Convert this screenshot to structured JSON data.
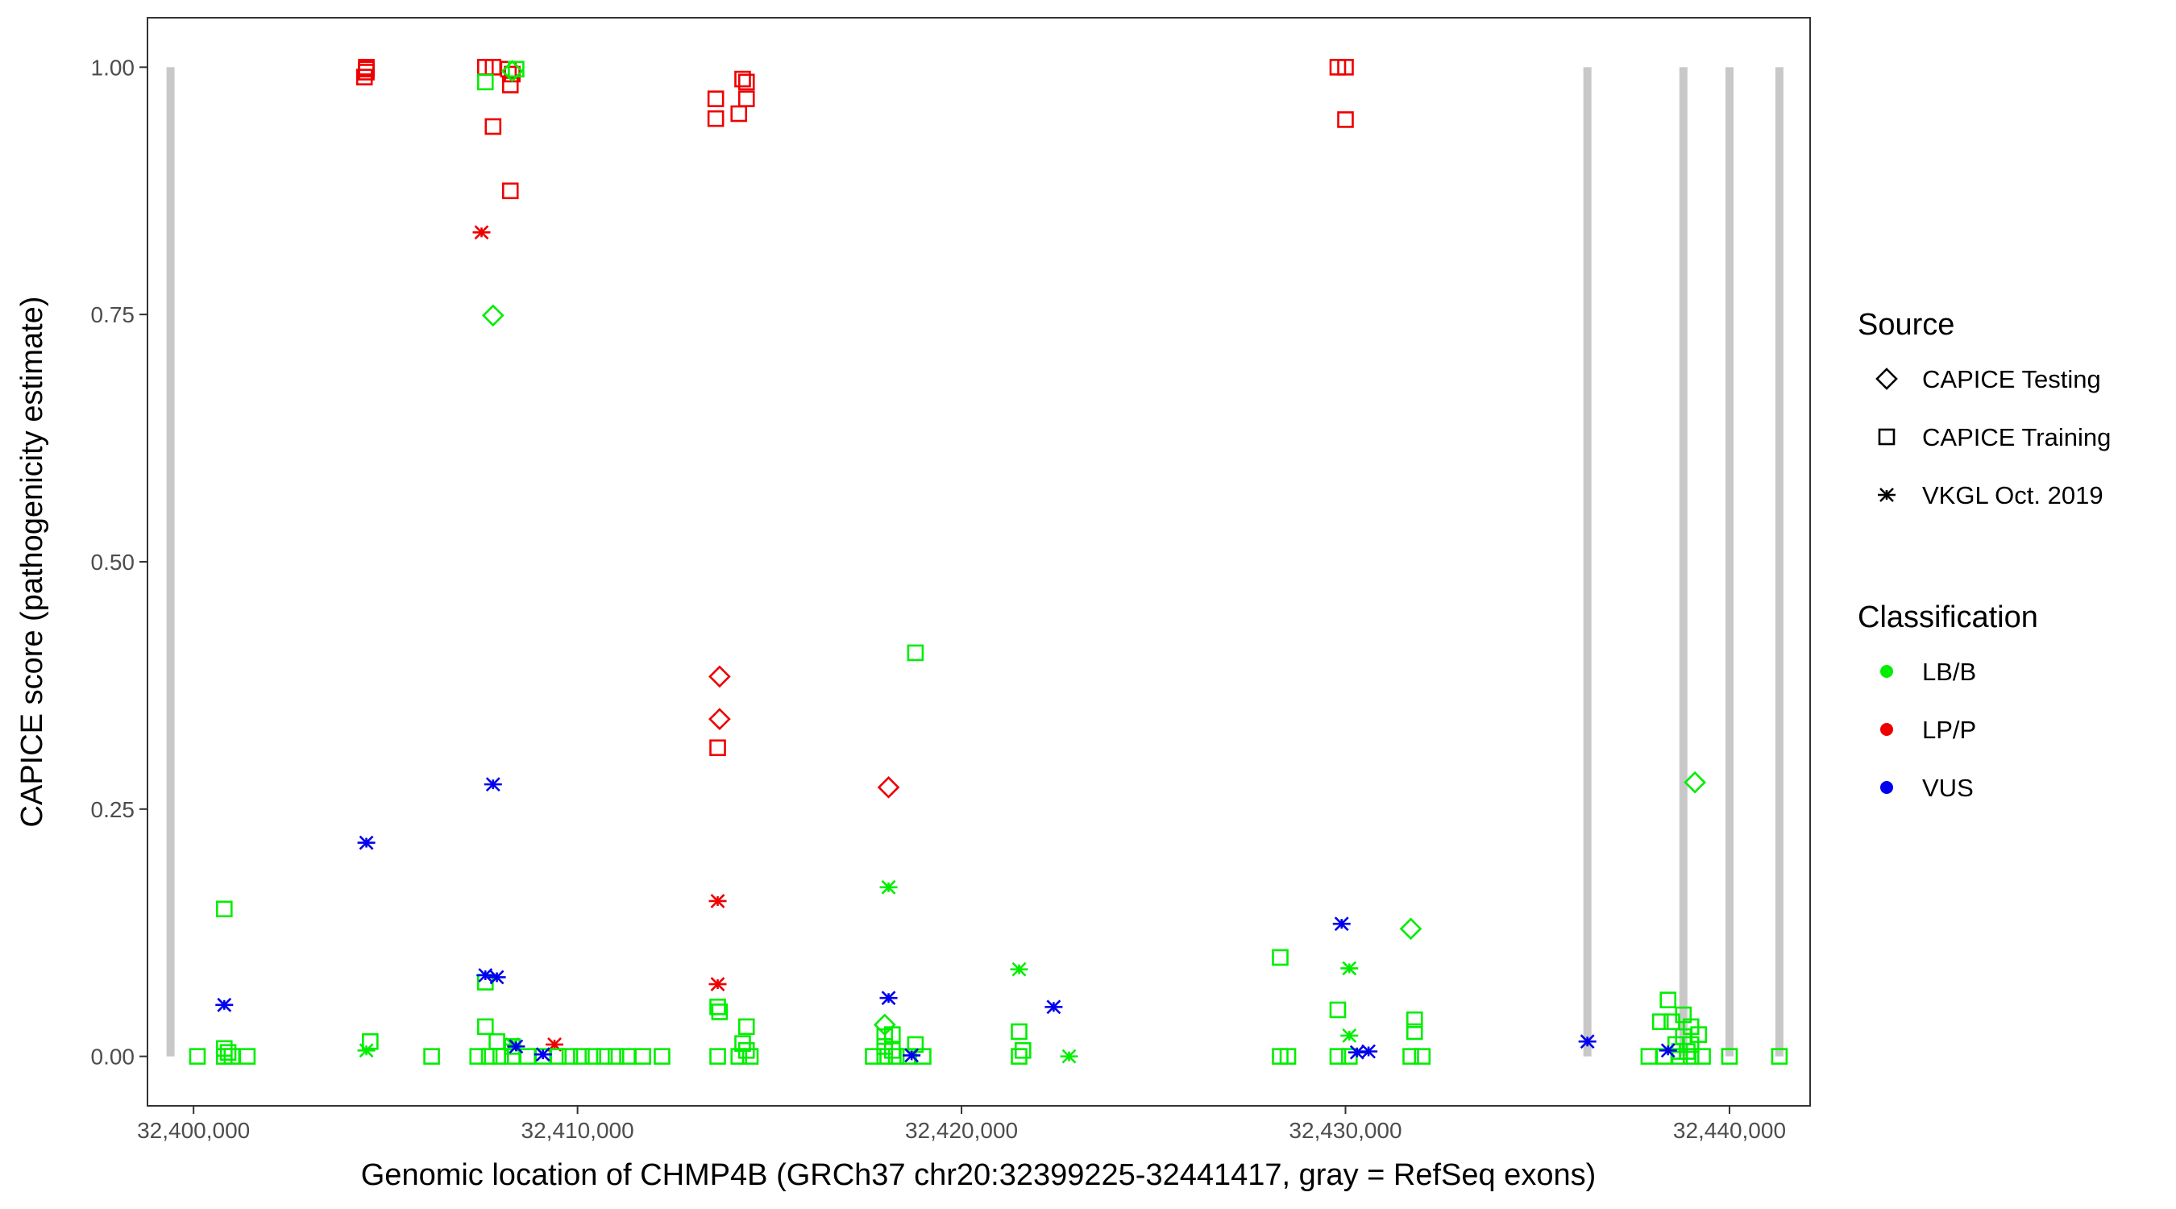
{
  "chart_data": {
    "type": "scatter",
    "xlabel": "Genomic location of CHMP4B (GRCh37 chr20:32399225-32441417, gray = RefSeq exons)",
    "ylabel": "CAPICE score (pathogenicity estimate)",
    "xlim": [
      32398800,
      32442100
    ],
    "ylim": [
      -0.05,
      1.05
    ],
    "x_ticks": [
      32400000,
      32410000,
      32420000,
      32430000,
      32440000
    ],
    "x_tick_labels": [
      "32,400,000",
      "32,410,000",
      "32,420,000",
      "32,430,000",
      "32,440,000"
    ],
    "y_ticks": [
      0,
      0.25,
      0.5,
      0.75,
      1
    ],
    "y_tick_labels": [
      "0.00",
      "0.25",
      "0.50",
      "0.75",
      "1.00"
    ],
    "grid": false,
    "exons": [
      32399400,
      32436300,
      32438800,
      32440000,
      32441300
    ],
    "exon_color": "#c8c8c8",
    "legend_position": "right",
    "legend": {
      "source": {
        "title": "Source",
        "items": [
          {
            "key": "testing",
            "label": "CAPICE Testing",
            "shape": "diamond"
          },
          {
            "key": "training",
            "label": "CAPICE Training",
            "shape": "square"
          },
          {
            "key": "vkgl",
            "label": "VKGL Oct. 2019",
            "shape": "asterisk"
          }
        ]
      },
      "classification": {
        "title": "Classification",
        "items": [
          {
            "key": "LB/B",
            "label": "LB/B",
            "color": "#00ee00"
          },
          {
            "key": "LP/P",
            "label": "LP/P",
            "color": "#ee0000"
          },
          {
            "key": "VUS",
            "label": "VUS",
            "color": "#0000ee"
          }
        ]
      }
    },
    "points": [
      {
        "x": 32404500,
        "y": 1.0,
        "source": "training",
        "class": "LP/P"
      },
      {
        "x": 32404500,
        "y": 0.998,
        "source": "training",
        "class": "LP/P"
      },
      {
        "x": 32404500,
        "y": 0.995,
        "source": "training",
        "class": "LP/P"
      },
      {
        "x": 32404450,
        "y": 0.99,
        "source": "training",
        "class": "LP/P"
      },
      {
        "x": 32407600,
        "y": 1.0,
        "source": "training",
        "class": "LP/P"
      },
      {
        "x": 32407800,
        "y": 1.0,
        "source": "training",
        "class": "LP/P"
      },
      {
        "x": 32408200,
        "y": 0.998,
        "source": "training",
        "class": "LP/P"
      },
      {
        "x": 32408300,
        "y": 0.993,
        "source": "training",
        "class": "LP/P"
      },
      {
        "x": 32408250,
        "y": 0.982,
        "source": "training",
        "class": "LP/P"
      },
      {
        "x": 32407800,
        "y": 0.94,
        "source": "training",
        "class": "LP/P"
      },
      {
        "x": 32408250,
        "y": 0.875,
        "source": "training",
        "class": "LP/P"
      },
      {
        "x": 32407500,
        "y": 0.833,
        "source": "vkgl",
        "class": "LP/P"
      },
      {
        "x": 32413600,
        "y": 0.968,
        "source": "training",
        "class": "LP/P"
      },
      {
        "x": 32413600,
        "y": 0.948,
        "source": "training",
        "class": "LP/P"
      },
      {
        "x": 32414300,
        "y": 0.988,
        "source": "training",
        "class": "LP/P"
      },
      {
        "x": 32414400,
        "y": 0.985,
        "source": "training",
        "class": "LP/P"
      },
      {
        "x": 32414400,
        "y": 0.968,
        "source": "training",
        "class": "LP/P"
      },
      {
        "x": 32414200,
        "y": 0.953,
        "source": "training",
        "class": "LP/P"
      },
      {
        "x": 32429800,
        "y": 1.0,
        "source": "training",
        "class": "LP/P"
      },
      {
        "x": 32430000,
        "y": 1.0,
        "source": "training",
        "class": "LP/P"
      },
      {
        "x": 32430000,
        "y": 0.947,
        "source": "training",
        "class": "LP/P"
      },
      {
        "x": 32413700,
        "y": 0.384,
        "source": "testing",
        "class": "LP/P"
      },
      {
        "x": 32413700,
        "y": 0.341,
        "source": "testing",
        "class": "LP/P"
      },
      {
        "x": 32413650,
        "y": 0.312,
        "source": "training",
        "class": "LP/P"
      },
      {
        "x": 32413650,
        "y": 0.157,
        "source": "vkgl",
        "class": "LP/P"
      },
      {
        "x": 32413650,
        "y": 0.073,
        "source": "vkgl",
        "class": "LP/P"
      },
      {
        "x": 32418100,
        "y": 0.272,
        "source": "testing",
        "class": "LP/P"
      },
      {
        "x": 32409400,
        "y": 0.012,
        "source": "vkgl",
        "class": "LP/P"
      },
      {
        "x": 32407600,
        "y": 0.985,
        "source": "training",
        "class": "LB/B"
      },
      {
        "x": 32408300,
        "y": 0.996,
        "source": "testing",
        "class": "LB/B"
      },
      {
        "x": 32408400,
        "y": 0.998,
        "source": "training",
        "class": "LB/B"
      },
      {
        "x": 32407800,
        "y": 0.749,
        "source": "testing",
        "class": "LB/B"
      },
      {
        "x": 32418800,
        "y": 0.408,
        "source": "training",
        "class": "LB/B"
      },
      {
        "x": 32439100,
        "y": 0.277,
        "source": "testing",
        "class": "LB/B"
      },
      {
        "x": 32418100,
        "y": 0.171,
        "source": "vkgl",
        "class": "LB/B"
      },
      {
        "x": 32400800,
        "y": 0.149,
        "source": "training",
        "class": "LB/B"
      },
      {
        "x": 32431700,
        "y": 0.129,
        "source": "testing",
        "class": "LB/B"
      },
      {
        "x": 32428300,
        "y": 0.1,
        "source": "training",
        "class": "LB/B"
      },
      {
        "x": 32421500,
        "y": 0.088,
        "source": "vkgl",
        "class": "LB/B"
      },
      {
        "x": 32430100,
        "y": 0.089,
        "source": "vkgl",
        "class": "LB/B"
      },
      {
        "x": 32407600,
        "y": 0.075,
        "source": "training",
        "class": "LB/B"
      },
      {
        "x": 32438400,
        "y": 0.057,
        "source": "training",
        "class": "LB/B"
      },
      {
        "x": 32413650,
        "y": 0.05,
        "source": "training",
        "class": "LB/B"
      },
      {
        "x": 32413700,
        "y": 0.045,
        "source": "training",
        "class": "LB/B"
      },
      {
        "x": 32429800,
        "y": 0.047,
        "source": "training",
        "class": "LB/B"
      },
      {
        "x": 32438800,
        "y": 0.042,
        "source": "training",
        "class": "LB/B"
      },
      {
        "x": 32431800,
        "y": 0.037,
        "source": "training",
        "class": "LB/B"
      },
      {
        "x": 32438200,
        "y": 0.035,
        "source": "training",
        "class": "LB/B"
      },
      {
        "x": 32438500,
        "y": 0.035,
        "source": "training",
        "class": "LB/B"
      },
      {
        "x": 32418000,
        "y": 0.032,
        "source": "testing",
        "class": "LB/B"
      },
      {
        "x": 32407600,
        "y": 0.03,
        "source": "training",
        "class": "LB/B"
      },
      {
        "x": 32414400,
        "y": 0.03,
        "source": "training",
        "class": "LB/B"
      },
      {
        "x": 32439000,
        "y": 0.03,
        "source": "training",
        "class": "LB/B"
      },
      {
        "x": 32421500,
        "y": 0.025,
        "source": "training",
        "class": "LB/B"
      },
      {
        "x": 32431800,
        "y": 0.025,
        "source": "training",
        "class": "LB/B"
      },
      {
        "x": 32418200,
        "y": 0.022,
        "source": "training",
        "class": "LB/B"
      },
      {
        "x": 32430100,
        "y": 0.021,
        "source": "vkgl",
        "class": "LB/B"
      },
      {
        "x": 32439200,
        "y": 0.022,
        "source": "training",
        "class": "LB/B"
      },
      {
        "x": 32418000,
        "y": 0.02,
        "source": "training",
        "class": "LB/B"
      },
      {
        "x": 32438800,
        "y": 0.02,
        "source": "training",
        "class": "LB/B"
      },
      {
        "x": 32407900,
        "y": 0.015,
        "source": "training",
        "class": "LB/B"
      },
      {
        "x": 32404600,
        "y": 0.015,
        "source": "training",
        "class": "LB/B"
      },
      {
        "x": 32414300,
        "y": 0.013,
        "source": "training",
        "class": "LB/B"
      },
      {
        "x": 32418800,
        "y": 0.012,
        "source": "training",
        "class": "LB/B"
      },
      {
        "x": 32418000,
        "y": 0.01,
        "source": "training",
        "class": "LB/B"
      },
      {
        "x": 32408300,
        "y": 0.01,
        "source": "training",
        "class": "LB/B"
      },
      {
        "x": 32438600,
        "y": 0.012,
        "source": "training",
        "class": "LB/B"
      },
      {
        "x": 32439000,
        "y": 0.012,
        "source": "training",
        "class": "LB/B"
      },
      {
        "x": 32400800,
        "y": 0.008,
        "source": "training",
        "class": "LB/B"
      },
      {
        "x": 32404500,
        "y": 0.006,
        "source": "vkgl",
        "class": "LB/B"
      },
      {
        "x": 32421600,
        "y": 0.006,
        "source": "training",
        "class": "LB/B"
      },
      {
        "x": 32418200,
        "y": 0.006,
        "source": "training",
        "class": "LB/B"
      },
      {
        "x": 32414400,
        "y": 0.006,
        "source": "training",
        "class": "LB/B"
      },
      {
        "x": 32400900,
        "y": 0.004,
        "source": "training",
        "class": "LB/B"
      },
      {
        "x": 32438700,
        "y": 0.005,
        "source": "training",
        "class": "LB/B"
      },
      {
        "x": 32438900,
        "y": 0.005,
        "source": "training",
        "class": "LB/B"
      },
      {
        "x": 32400100,
        "y": 0.0,
        "source": "training",
        "class": "LB/B"
      },
      {
        "x": 32400800,
        "y": 0.0,
        "source": "training",
        "class": "LB/B"
      },
      {
        "x": 32401000,
        "y": 0.0,
        "source": "training",
        "class": "LB/B"
      },
      {
        "x": 32401400,
        "y": 0.0,
        "source": "training",
        "class": "LB/B"
      },
      {
        "x": 32406200,
        "y": 0.0,
        "source": "training",
        "class": "LB/B"
      },
      {
        "x": 32407400,
        "y": 0.0,
        "source": "training",
        "class": "LB/B"
      },
      {
        "x": 32407700,
        "y": 0.0,
        "source": "training",
        "class": "LB/B"
      },
      {
        "x": 32408000,
        "y": 0.0,
        "source": "training",
        "class": "LB/B"
      },
      {
        "x": 32408300,
        "y": 0.0,
        "source": "training",
        "class": "LB/B"
      },
      {
        "x": 32408700,
        "y": 0.0,
        "source": "training",
        "class": "LB/B"
      },
      {
        "x": 32409100,
        "y": 0.0,
        "source": "training",
        "class": "LB/B"
      },
      {
        "x": 32409500,
        "y": 0.0,
        "source": "training",
        "class": "LB/B"
      },
      {
        "x": 32409800,
        "y": 0.0,
        "source": "training",
        "class": "LB/B"
      },
      {
        "x": 32410100,
        "y": 0.0,
        "source": "training",
        "class": "LB/B"
      },
      {
        "x": 32410400,
        "y": 0.0,
        "source": "training",
        "class": "LB/B"
      },
      {
        "x": 32410700,
        "y": 0.0,
        "source": "training",
        "class": "LB/B"
      },
      {
        "x": 32411000,
        "y": 0.0,
        "source": "training",
        "class": "LB/B"
      },
      {
        "x": 32411300,
        "y": 0.0,
        "source": "training",
        "class": "LB/B"
      },
      {
        "x": 32411700,
        "y": 0.0,
        "source": "training",
        "class": "LB/B"
      },
      {
        "x": 32412200,
        "y": 0.0,
        "source": "training",
        "class": "LB/B"
      },
      {
        "x": 32413650,
        "y": 0.0,
        "source": "training",
        "class": "LB/B"
      },
      {
        "x": 32414200,
        "y": 0.0,
        "source": "training",
        "class": "LB/B"
      },
      {
        "x": 32414500,
        "y": 0.0,
        "source": "training",
        "class": "LB/B"
      },
      {
        "x": 32417700,
        "y": 0.0,
        "source": "training",
        "class": "LB/B"
      },
      {
        "x": 32418000,
        "y": 0.0,
        "source": "training",
        "class": "LB/B"
      },
      {
        "x": 32418300,
        "y": 0.0,
        "source": "training",
        "class": "LB/B"
      },
      {
        "x": 32418600,
        "y": 0.0,
        "source": "training",
        "class": "LB/B"
      },
      {
        "x": 32419000,
        "y": 0.0,
        "source": "training",
        "class": "LB/B"
      },
      {
        "x": 32421500,
        "y": 0.0,
        "source": "training",
        "class": "LB/B"
      },
      {
        "x": 32422800,
        "y": 0.0,
        "source": "vkgl",
        "class": "LB/B"
      },
      {
        "x": 32428300,
        "y": 0.0,
        "source": "training",
        "class": "LB/B"
      },
      {
        "x": 32428500,
        "y": 0.0,
        "source": "training",
        "class": "LB/B"
      },
      {
        "x": 32429800,
        "y": 0.0,
        "source": "training",
        "class": "LB/B"
      },
      {
        "x": 32430100,
        "y": 0.0,
        "source": "training",
        "class": "LB/B"
      },
      {
        "x": 32431700,
        "y": 0.0,
        "source": "training",
        "class": "LB/B"
      },
      {
        "x": 32432000,
        "y": 0.0,
        "source": "training",
        "class": "LB/B"
      },
      {
        "x": 32437900,
        "y": 0.0,
        "source": "training",
        "class": "LB/B"
      },
      {
        "x": 32438300,
        "y": 0.0,
        "source": "training",
        "class": "LB/B"
      },
      {
        "x": 32438700,
        "y": 0.0,
        "source": "training",
        "class": "LB/B"
      },
      {
        "x": 32439000,
        "y": 0.0,
        "source": "training",
        "class": "LB/B"
      },
      {
        "x": 32439300,
        "y": 0.0,
        "source": "training",
        "class": "LB/B"
      },
      {
        "x": 32440000,
        "y": 0.0,
        "source": "training",
        "class": "LB/B"
      },
      {
        "x": 32441300,
        "y": 0.0,
        "source": "training",
        "class": "LB/B"
      },
      {
        "x": 32408300,
        "y": 0.012,
        "source": "vkgl",
        "class": "LB/B"
      },
      {
        "x": 32404500,
        "y": 0.216,
        "source": "vkgl",
        "class": "VUS"
      },
      {
        "x": 32407800,
        "y": 0.275,
        "source": "vkgl",
        "class": "VUS"
      },
      {
        "x": 32407600,
        "y": 0.082,
        "source": "vkgl",
        "class": "VUS"
      },
      {
        "x": 32407900,
        "y": 0.08,
        "source": "vkgl",
        "class": "VUS"
      },
      {
        "x": 32400800,
        "y": 0.052,
        "source": "vkgl",
        "class": "VUS"
      },
      {
        "x": 32408400,
        "y": 0.01,
        "source": "vkgl",
        "class": "VUS"
      },
      {
        "x": 32409100,
        "y": 0.002,
        "source": "vkgl",
        "class": "VUS"
      },
      {
        "x": 32418100,
        "y": 0.059,
        "source": "vkgl",
        "class": "VUS"
      },
      {
        "x": 32418700,
        "y": 0.001,
        "source": "vkgl",
        "class": "VUS"
      },
      {
        "x": 32422400,
        "y": 0.05,
        "source": "vkgl",
        "class": "VUS"
      },
      {
        "x": 32429900,
        "y": 0.134,
        "source": "vkgl",
        "class": "VUS"
      },
      {
        "x": 32430300,
        "y": 0.004,
        "source": "vkgl",
        "class": "VUS"
      },
      {
        "x": 32430600,
        "y": 0.005,
        "source": "vkgl",
        "class": "VUS"
      },
      {
        "x": 32436300,
        "y": 0.015,
        "source": "vkgl",
        "class": "VUS"
      },
      {
        "x": 32438400,
        "y": 0.006,
        "source": "vkgl",
        "class": "VUS"
      }
    ]
  }
}
